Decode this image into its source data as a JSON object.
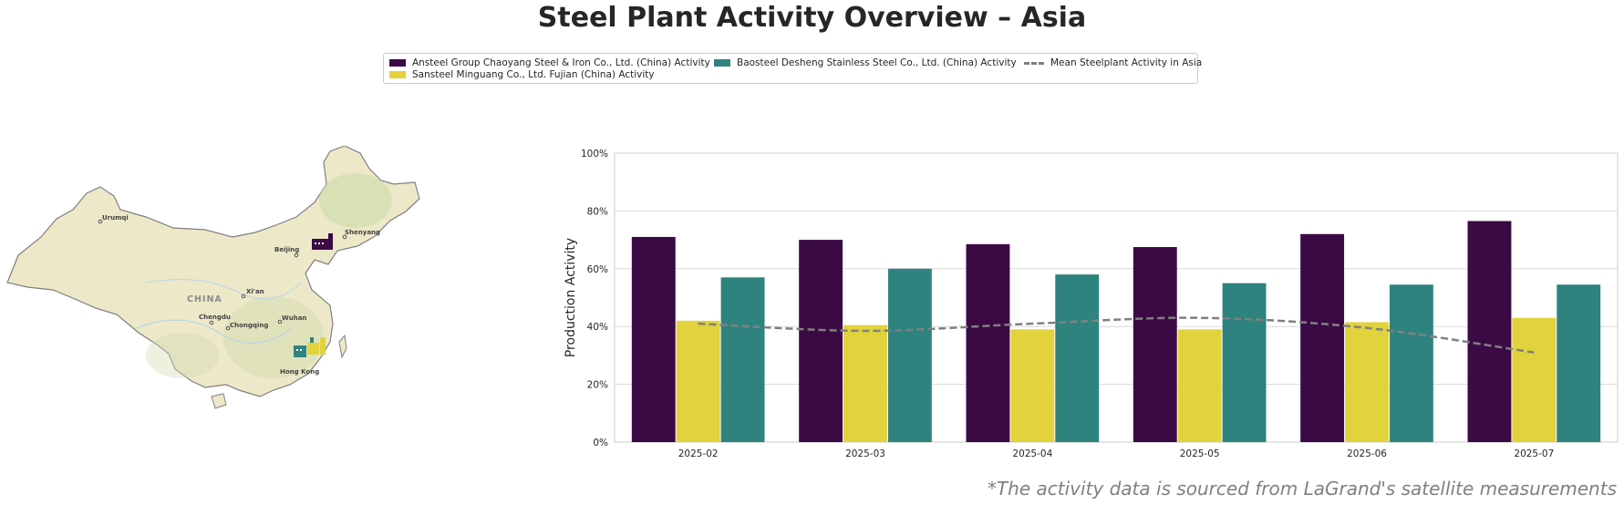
{
  "title": "Steel Plant Activity Overview – Asia",
  "footnote": "*The activity data is sourced from LaGrand's satellite measurements",
  "legend": [
    {
      "label": "Ansteel Group Chaoyang Steel & Iron Co., Ltd. (China) Activity",
      "color": "#3b0a45",
      "kind": "bar"
    },
    {
      "label": "Sansteel Minguang Co., Ltd. Fujian (China) Activity",
      "color": "#e2d23c",
      "kind": "bar"
    },
    {
      "label": "Baosteel Desheng Stainless Steel Co., Ltd. (China) Activity",
      "color": "#2e837e",
      "kind": "bar"
    },
    {
      "label": "Mean Steelplant Activity in Asia",
      "color": "#808080",
      "kind": "line"
    }
  ],
  "map": {
    "country_label": "CHINA",
    "cities": [
      "Urumqi",
      "Beijing",
      "Shenyang",
      "Xi'an",
      "Chengdu",
      "Chongqing",
      "Wuhan",
      "Hong Kong"
    ],
    "markers": [
      {
        "plant": "Ansteel Group Chaoyang Steel & Iron Co., Ltd. (China)",
        "color": "#3b0a45",
        "icon": "factory-icon"
      },
      {
        "plant": "Baosteel Desheng Stainless Steel Co., Ltd. (China)",
        "color": "#2e837e",
        "icon": "factory-icon"
      },
      {
        "plant": "Sansteel Minguang Co., Ltd. Fujian (China)",
        "color": "#e2d23c",
        "icon": "factory-icon"
      }
    ],
    "fill_color": "#ece8c8",
    "border_color": "#808080"
  },
  "chart_data": {
    "type": "bar",
    "categories": [
      "2025-02",
      "2025-03",
      "2025-04",
      "2025-05",
      "2025-06",
      "2025-07"
    ],
    "series": [
      {
        "name": "Ansteel Group Chaoyang Steel & Iron Co., Ltd. (China) Activity",
        "color": "#3b0a45",
        "values": [
          71,
          70,
          68.5,
          67.5,
          72,
          76.5
        ]
      },
      {
        "name": "Sansteel Minguang Co., Ltd. Fujian (China) Activity",
        "color": "#e2d23c",
        "values": [
          42,
          40.5,
          39,
          39,
          41.5,
          43
        ]
      },
      {
        "name": "Baosteel Desheng Stainless Steel Co., Ltd. (China) Activity",
        "color": "#2e837e",
        "values": [
          57,
          60,
          58,
          55,
          54.5,
          54.5
        ]
      }
    ],
    "line_series": {
      "name": "Mean Steelplant Activity in Asia",
      "color": "#808080",
      "style": "dashed",
      "values": [
        41,
        38.5,
        41,
        43,
        39.5,
        31
      ]
    },
    "ylabel": "Production Activity",
    "xlabel": "",
    "ylim": [
      0,
      100
    ],
    "yticks": [
      "0%",
      "20%",
      "40%",
      "60%",
      "80%",
      "100%"
    ],
    "grid": true
  }
}
